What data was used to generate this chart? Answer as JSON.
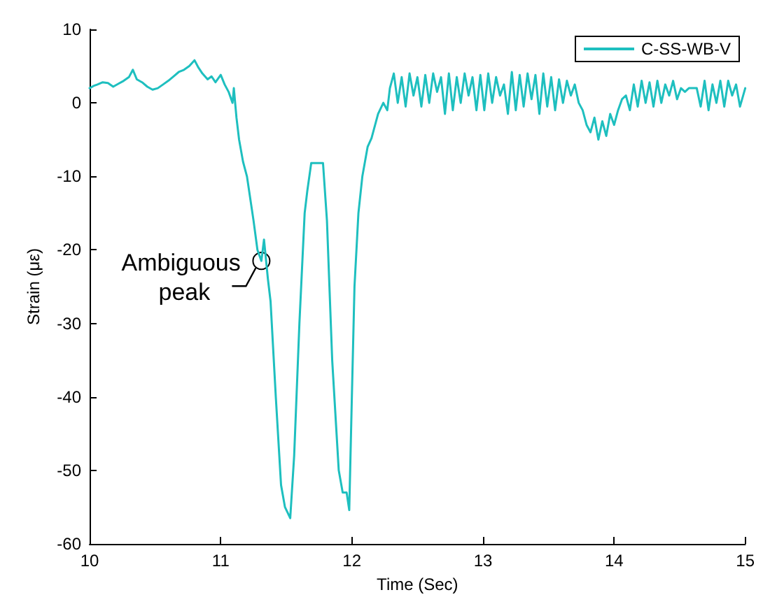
{
  "chart_data": {
    "type": "line",
    "xlabel": "Time (Sec)",
    "ylabel": "Strain (με)",
    "xlim": [
      10,
      15
    ],
    "xticks": [
      10,
      11,
      12,
      13,
      14,
      15
    ],
    "ylim": [
      -60,
      10
    ],
    "yticks": [
      -60,
      -50,
      -40,
      -30,
      -20,
      -10,
      0,
      10
    ],
    "grid": false,
    "legend": "top right",
    "marker": "none",
    "line_style": "solid",
    "annotations": [
      {
        "text": "Ambiguous peak",
        "x": 11.31,
        "y": -21.5
      }
    ],
    "series": [
      {
        "name": "C-SS-WB-V",
        "color": "#1ebfbf",
        "x": [
          10.0,
          10.03,
          10.06,
          10.1,
          10.14,
          10.18,
          10.22,
          10.26,
          10.3,
          10.33,
          10.36,
          10.4,
          10.44,
          10.48,
          10.52,
          10.56,
          10.6,
          10.64,
          10.68,
          10.72,
          10.76,
          10.8,
          10.83,
          10.86,
          10.9,
          10.93,
          10.96,
          11.0,
          11.03,
          11.06,
          11.09,
          11.1,
          11.12,
          11.14,
          11.17,
          11.2,
          11.25,
          11.28,
          11.31,
          11.33,
          11.36,
          11.38,
          11.42,
          11.46,
          11.49,
          11.53,
          11.56,
          11.6,
          11.64,
          11.66,
          11.69,
          11.78,
          11.81,
          11.85,
          11.9,
          11.93,
          11.96,
          11.98,
          12.0,
          12.02,
          12.05,
          12.08,
          12.12,
          12.15,
          12.2,
          12.24,
          12.27,
          12.29,
          12.32,
          12.35,
          12.38,
          12.41,
          12.44,
          12.47,
          12.5,
          12.53,
          12.56,
          12.59,
          12.62,
          12.65,
          12.68,
          12.71,
          12.74,
          12.77,
          12.8,
          12.83,
          12.86,
          12.89,
          12.92,
          12.95,
          12.98,
          13.01,
          13.04,
          13.07,
          13.1,
          13.13,
          13.16,
          13.19,
          13.22,
          13.25,
          13.28,
          13.31,
          13.34,
          13.37,
          13.4,
          13.43,
          13.46,
          13.49,
          13.52,
          13.55,
          13.58,
          13.61,
          13.64,
          13.67,
          13.7,
          13.73,
          13.76,
          13.79,
          13.82,
          13.85,
          13.88,
          13.91,
          13.94,
          13.97,
          14.0,
          14.03,
          14.06,
          14.09,
          14.12,
          14.15,
          14.18,
          14.21,
          14.24,
          14.27,
          14.3,
          14.33,
          14.36,
          14.39,
          14.42,
          14.45,
          14.48,
          14.51,
          14.54,
          14.57,
          14.6,
          14.63,
          14.66,
          14.69,
          14.72,
          14.75,
          14.78,
          14.81,
          14.84,
          14.87,
          14.9,
          14.93,
          14.96,
          15.0
        ],
        "values": [
          2,
          2.3,
          2.5,
          2.8,
          2.7,
          2.2,
          2.6,
          3,
          3.5,
          4.5,
          3.2,
          2.8,
          2.2,
          1.8,
          2,
          2.5,
          3,
          3.6,
          4.2,
          4.5,
          5,
          5.8,
          4.8,
          4,
          3.2,
          3.6,
          2.8,
          3.8,
          2.5,
          1.5,
          0,
          2,
          -2,
          -5,
          -8,
          -10,
          -16,
          -20,
          -21.5,
          -18.6,
          -24,
          -27,
          -40,
          -52,
          -55,
          -56.5,
          -48,
          -30,
          -15,
          -12,
          -8.2,
          -8.2,
          -16,
          -35,
          -50,
          -53,
          -53,
          -55.4,
          -40,
          -25,
          -15,
          -10,
          -6,
          -4.8,
          -1.5,
          0,
          -1,
          2,
          4,
          0,
          3.5,
          -0.5,
          4,
          1,
          3.5,
          -0.5,
          3.8,
          0,
          4,
          1.5,
          3.5,
          -1.5,
          4,
          -1,
          3.5,
          0,
          4,
          1,
          3.5,
          -1,
          3.8,
          -1,
          4,
          0,
          3.5,
          1,
          2.5,
          -1.5,
          4.2,
          -1,
          3.8,
          -0.5,
          4,
          0.5,
          3.8,
          -1.5,
          4,
          -0.5,
          3.5,
          -1,
          3.2,
          0,
          3,
          1,
          2.5,
          0,
          -1,
          -3,
          -4,
          -2,
          -5,
          -2.5,
          -4.5,
          -1.5,
          -3,
          -1,
          0.5,
          1,
          -1,
          2.5,
          -0.5,
          3,
          0,
          2.8,
          -0.5,
          3,
          0,
          2.5,
          1,
          3,
          0.5,
          2,
          1.5,
          2,
          2,
          2,
          -0.5,
          3,
          -1,
          2.5,
          0,
          3,
          -0.5,
          3,
          1,
          2.5,
          -0.5,
          2
        ]
      }
    ]
  }
}
